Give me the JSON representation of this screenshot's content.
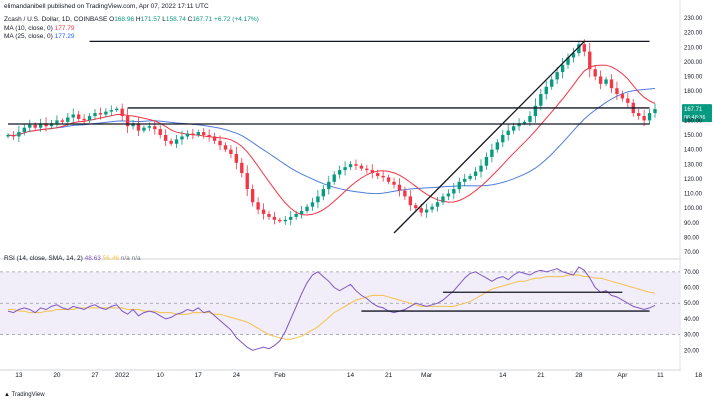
{
  "header": {
    "published_by": "elimandanibell published on TradingView.com, Apr 07, 2022 17:11 UTC",
    "symbol_line": "Zcash / U.S. Dollar, 1D, COINBASE",
    "ohlc": {
      "o_label": "O",
      "o": "168.96",
      "h_label": "H",
      "h": "171.57",
      "l_label": "L",
      "l": "158.74",
      "c_label": "C",
      "c": "167.71",
      "change": "+6.72 (+4.17%)"
    },
    "ma10_label": "MA (10, close, 0)",
    "ma10_value": "177.79",
    "ma25_label": "MA (25, close, 0)",
    "ma25_value": "177.29",
    "rsi_label": "RSI (14, close, SMA, 14, 2)",
    "rsi_value": "48.63",
    "rsi_sma_value": "56.46",
    "rsi_na1": "n/a",
    "rsi_na2": "n/a"
  },
  "footer": {
    "brand": "TradingView"
  },
  "colors": {
    "up": "#089981",
    "down": "#f23645",
    "ma10": "#f23645",
    "ma25": "#4f7dd9",
    "rsi": "#7e57c2",
    "rsi_sma": "#f5c14b",
    "rsi_band": "#ede7f6"
  },
  "chart_data": [
    {
      "type": "candlestick",
      "symbol": "Zcash / U.S. Dollar",
      "ylim": [
        70,
        230
      ],
      "price_ticks": [
        "230.00",
        "220.00",
        "210.00",
        "200.00",
        "190.00",
        "180.00",
        "167.71",
        "160.00",
        "150.00",
        "140.00",
        "130.00",
        "120.00",
        "110.00",
        "100.00",
        "90.00",
        "80.00",
        "70.00"
      ],
      "price_label_extra": "06:48:36",
      "x_ticks": [
        {
          "i": 2,
          "label": "13"
        },
        {
          "i": 9,
          "label": "20"
        },
        {
          "i": 16,
          "label": "27"
        },
        {
          "i": 21,
          "label": "2022"
        },
        {
          "i": 28,
          "label": "10"
        },
        {
          "i": 35,
          "label": "17"
        },
        {
          "i": 42,
          "label": "24"
        },
        {
          "i": 50,
          "label": "Feb"
        },
        {
          "i": 63,
          "label": "14"
        },
        {
          "i": 70,
          "label": "21"
        },
        {
          "i": 77,
          "label": "Mar"
        },
        {
          "i": 91,
          "label": "14"
        },
        {
          "i": 98,
          "label": "21"
        },
        {
          "i": 105,
          "label": "28"
        },
        {
          "i": 113,
          "label": "Apr"
        },
        {
          "i": 120,
          "label": "11"
        },
        {
          "i": 127,
          "label": "18"
        }
      ],
      "closes": [
        150,
        149,
        152,
        155,
        157,
        155,
        158,
        156,
        158,
        160,
        159,
        162,
        164,
        161,
        160,
        163,
        165,
        164,
        166,
        167,
        168,
        163,
        156,
        158,
        153,
        155,
        156,
        154,
        150,
        146,
        144,
        147,
        149,
        151,
        150,
        152,
        150,
        149,
        146,
        143,
        140,
        137,
        131,
        124,
        113,
        104,
        99,
        96,
        94,
        92,
        91,
        92,
        94,
        96,
        98,
        101,
        104,
        108,
        113,
        118,
        123,
        126,
        128,
        130,
        129,
        127,
        126,
        124,
        122,
        121,
        118,
        116,
        112,
        108,
        102,
        100,
        97,
        99,
        101,
        104,
        108,
        110,
        113,
        118,
        120,
        122,
        125,
        129,
        135,
        140,
        145,
        150,
        153,
        156,
        158,
        159,
        163,
        170,
        178,
        183,
        188,
        193,
        198,
        203,
        206,
        212,
        207,
        195,
        190,
        185,
        188,
        182,
        178,
        175,
        172,
        165,
        163,
        160,
        165,
        167.71
      ],
      "range_length": 120,
      "horizontal_levels": [
        {
          "price": 214,
          "i_start": 15,
          "i_end": 118
        },
        {
          "price": 168.5,
          "i_start": 22,
          "i_end": 118
        },
        {
          "price": 157.5,
          "i_start": 0,
          "i_end": 118
        }
      ],
      "trendlines": [
        {
          "i1": 71,
          "p1": 83,
          "i2": 106,
          "p2": 214
        }
      ]
    },
    {
      "type": "line",
      "name": "RSI",
      "ylim": [
        10,
        75
      ],
      "rsi_ticks": [
        "70.00",
        "60.00",
        "50.00",
        "40.00",
        "30.00",
        "20.00"
      ],
      "band": [
        30,
        70
      ],
      "midline": 50,
      "rsi": [
        45,
        44,
        46,
        47,
        46,
        44,
        47,
        46,
        48,
        49,
        47,
        46,
        48,
        47,
        46,
        48,
        49,
        47,
        46,
        48,
        49,
        45,
        43,
        46,
        42,
        44,
        45,
        44,
        42,
        40,
        41,
        43,
        44,
        46,
        45,
        47,
        44,
        45,
        42,
        39,
        36,
        33,
        28,
        25,
        22,
        20,
        21,
        22,
        21,
        23,
        26,
        32,
        40,
        48,
        56,
        63,
        68,
        70,
        67,
        64,
        60,
        58,
        60,
        62,
        58,
        55,
        53,
        50,
        48,
        47,
        45,
        44,
        45,
        46,
        48,
        50,
        49,
        48,
        49,
        50,
        52,
        55,
        58,
        62,
        66,
        69,
        70,
        68,
        66,
        64,
        66,
        67,
        65,
        68,
        70,
        69,
        68,
        70,
        71,
        70,
        71,
        72,
        70,
        69,
        68,
        73,
        71,
        66,
        60,
        57,
        58,
        55,
        54,
        52,
        50,
        48,
        47,
        46,
        47,
        48.63
      ],
      "rsi_sma": [
        46,
        46,
        45,
        45,
        44,
        44,
        44,
        45,
        45,
        46,
        46,
        46,
        46,
        47,
        47,
        47,
        47,
        47,
        47,
        47,
        47,
        47,
        46,
        46,
        46,
        45,
        45,
        45,
        44,
        44,
        44,
        43,
        43,
        43,
        44,
        44,
        44,
        44,
        43,
        43,
        42,
        41,
        40,
        39,
        38,
        36,
        34,
        32,
        30,
        29,
        28,
        27,
        27,
        28,
        29,
        31,
        33,
        35,
        38,
        41,
        44,
        46,
        48,
        50,
        52,
        53,
        54,
        55,
        55,
        55,
        54,
        53,
        52,
        51,
        50,
        49,
        48,
        48,
        48,
        48,
        48,
        48,
        48,
        49,
        50,
        51,
        53,
        55,
        57,
        59,
        60,
        61,
        62,
        63,
        64,
        64,
        65,
        66,
        66,
        67,
        67,
        67,
        67,
        68,
        68,
        68,
        67,
        67,
        66,
        66,
        65,
        64,
        63,
        62,
        61,
        60,
        59,
        58,
        57,
        56.46
      ],
      "horizontal_levels": [
        {
          "value": 57,
          "i_start": 80,
          "i_end": 113
        },
        {
          "value": 45,
          "i_start": 65,
          "i_end": 118
        }
      ]
    }
  ]
}
